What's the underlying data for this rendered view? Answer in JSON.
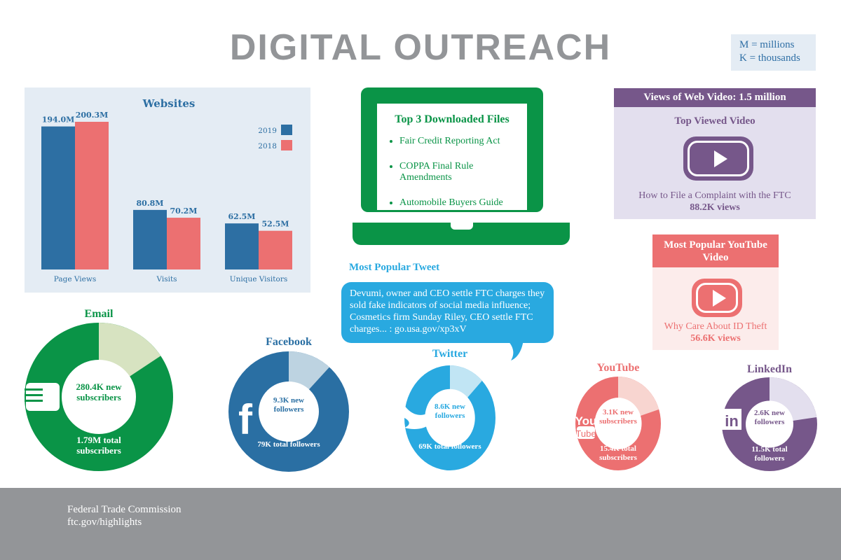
{
  "title": "DIGITAL OUTREACH",
  "units": {
    "m": "M = millions",
    "k": "K = thousands"
  },
  "colors": {
    "blue": "#2d6fa3",
    "pink": "#ec7071",
    "green": "#0a9447",
    "twitter": "#29a9e0",
    "purple": "#76578a",
    "gray": "#939598"
  },
  "chart_data": [
    {
      "type": "bar",
      "title": "Websites",
      "categories": [
        "Page Views",
        "Visits",
        "Unique Visitors"
      ],
      "series": [
        {
          "name": "2019",
          "values": [
            194.0,
            80.8,
            62.5
          ],
          "labels": [
            "194.0M",
            "80.8M",
            "62.5M"
          ],
          "color": "#2d6fa3"
        },
        {
          "name": "2018",
          "values": [
            200.3,
            70.2,
            52.5
          ],
          "labels": [
            "200.3M",
            "70.2M",
            "52.5M"
          ],
          "color": "#ec7071"
        }
      ],
      "legend": "top-right",
      "grid": false,
      "ylim": [
        0,
        200.3
      ]
    },
    {
      "type": "pie",
      "title": "Email",
      "new": 280.4,
      "total": 1790,
      "new_label": "280.4K new subscribers",
      "total_label": "1.79M total subscribers",
      "icon": "email-icon",
      "color": "#0a9447",
      "light": "#d7e3c1"
    },
    {
      "type": "pie",
      "title": "Facebook",
      "new": 9.3,
      "total": 79,
      "new_label": "9.3K new followers",
      "total_label": "79K total followers",
      "icon": "facebook-icon",
      "color": "#2a6fa3",
      "light": "#bdd3e1"
    },
    {
      "type": "pie",
      "title": "Twitter",
      "new": 8.6,
      "total": 69,
      "new_label": "8.6K new followers",
      "total_label": "69K total followers",
      "icon": "twitter-icon",
      "color": "#29a9e0",
      "light": "#c1e5f4"
    },
    {
      "type": "pie",
      "title": "YouTube",
      "new": 3.1,
      "total": 15.4,
      "new_label": "3.1K new subscribers",
      "total_label": "15.4K total subscribers",
      "icon": "youtube-icon",
      "color": "#ec7071",
      "light": "#f8d5d0"
    },
    {
      "type": "pie",
      "title": "LinkedIn",
      "new": 2.6,
      "total": 11.5,
      "new_label": "2.6K new followers",
      "total_label": "11.5K total followers",
      "icon": "linkedin-icon",
      "color": "#76578a",
      "light": "#e3dfee"
    }
  ],
  "files": {
    "title": "Top 3 Downloaded Files",
    "items": [
      "Fair Credit Reporting Act",
      "COPPA Final Rule Amendments",
      "Automobile Buyers Guide"
    ]
  },
  "tweet": {
    "heading": "Most Popular Tweet",
    "text": "Devumi, owner and CEO settle FTC charges they sold fake indicators of social media influence; Cosmetics firm Sunday Riley, CEO settle FTC charges... : go.usa.gov/xp3xV"
  },
  "web_video": {
    "header": "Views of Web Video: 1.5 million",
    "subtitle": "Top Viewed Video",
    "name": "How to File a Complaint with the FTC",
    "views": "88.2K views"
  },
  "youtube_video": {
    "header": "Most Popular YouTube Video",
    "name": "Why Care About ID Theft",
    "views": "56.6K views"
  },
  "footer": {
    "org": "Federal Trade Commission",
    "url": "ftc.gov/highlights"
  }
}
